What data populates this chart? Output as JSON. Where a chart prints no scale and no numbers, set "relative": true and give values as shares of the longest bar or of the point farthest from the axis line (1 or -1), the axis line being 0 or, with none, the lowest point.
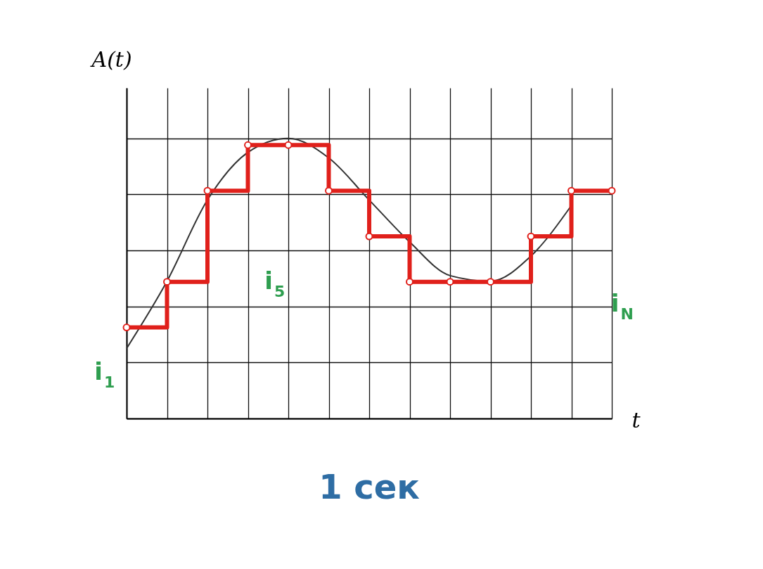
{
  "chart_data": {
    "type": "line",
    "relative": true,
    "xlabel": "t",
    "ylabel": "A(t)",
    "categories": [
      null,
      null,
      null,
      null,
      null,
      null,
      null,
      null,
      null,
      null,
      null,
      null,
      null
    ],
    "grid": true,
    "tick_labels": false,
    "series": [
      {
        "color": "#333333",
        "values": [
          0.25,
          0.49,
          0.78,
          0.95,
          1,
          0.93,
          0.78,
          0.63,
          0.51,
          0.49,
          0.58,
          0.76,
          null
        ]
      },
      {
        "type": "step",
        "color": "#e0201b",
        "marker": "circle",
        "values": [
          0.325,
          0.488,
          0.813,
          0.976,
          0.976,
          0.813,
          0.65,
          0.488,
          0.488,
          0.488,
          0.65,
          0.813,
          0.813
        ]
      }
    ],
    "annotations": [
      "i$_{1}$",
      "i$_{5}$",
      "i$_{N}$",
      "1 сек"
    ]
  }
}
